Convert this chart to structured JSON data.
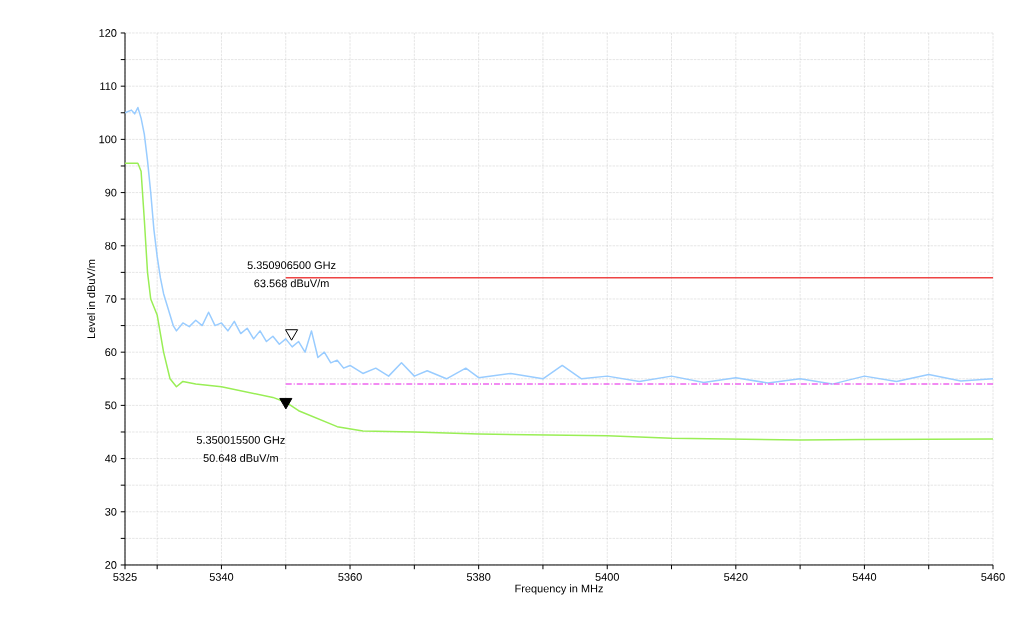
{
  "chart_data": {
    "type": "line",
    "xlabel": "Frequency in MHz",
    "ylabel": "Level in dBuV/m",
    "xlim": [
      5325,
      5460
    ],
    "ylim": [
      20,
      120
    ],
    "xticks": [
      5325,
      {
        "value": 5330,
        "label": null
      },
      5340,
      {
        "value": 5350,
        "label": null
      },
      5360,
      {
        "value": 5370,
        "label": null
      },
      5380,
      {
        "value": 5390,
        "label": null
      },
      5400,
      {
        "value": 5410,
        "label": null
      },
      5420,
      {
        "value": 5430,
        "label": null
      },
      5440,
      {
        "value": 5450,
        "label": null
      },
      5460
    ],
    "yticks": [
      20,
      {
        "value": 25,
        "label": null
      },
      30,
      {
        "value": 35,
        "label": null
      },
      40,
      {
        "value": 45,
        "label": null
      },
      50,
      {
        "value": 55,
        "label": null
      },
      60,
      {
        "value": 65,
        "label": null
      },
      70,
      {
        "value": 75,
        "label": null
      },
      80,
      {
        "value": 85,
        "label": null
      },
      90,
      {
        "value": 95,
        "label": null
      },
      100,
      {
        "value": 105,
        "label": null
      },
      110,
      {
        "value": 115,
        "label": null
      },
      120
    ],
    "grid": true,
    "marker": "none",
    "line_style": "solid",
    "series": [
      {
        "color": "#99ccff",
        "x": [
          5325,
          5326,
          5326.5,
          5327,
          5327.5,
          5328,
          5328.5,
          5329,
          5329.5,
          5330,
          5330.5,
          5331,
          5331.5,
          5332,
          5332.5,
          5333,
          5334,
          5335,
          5336,
          5337,
          5338,
          5339,
          5340,
          5341,
          5342,
          5343,
          5344,
          5345,
          5346,
          5347,
          5348,
          5349,
          5350,
          5351,
          5352,
          5353,
          5354,
          5355,
          5356,
          5357,
          5358,
          5359,
          5360,
          5362,
          5364,
          5366,
          5368,
          5370,
          5372,
          5375,
          5378,
          5380,
          5385,
          5390,
          5393,
          5396,
          5400,
          5405,
          5410,
          5415,
          5420,
          5425,
          5430,
          5435,
          5440,
          5445,
          5450,
          5455,
          5460
        ],
        "values": [
          105,
          105.5,
          104.8,
          106,
          104,
          101,
          96,
          90,
          83,
          78,
          74,
          71,
          69,
          67,
          65,
          64,
          65.5,
          64.8,
          66,
          65,
          67.5,
          65,
          65.5,
          64,
          65.8,
          63.5,
          64.5,
          62.5,
          64,
          62,
          63,
          61.5,
          62.5,
          61,
          62,
          60,
          64,
          59,
          60,
          58,
          58.5,
          57,
          57.5,
          56,
          57,
          55.5,
          58,
          55.5,
          56.5,
          55,
          57,
          55.2,
          56,
          55,
          57.5,
          55,
          55.5,
          54.5,
          55.5,
          54.3,
          55.2,
          54.2,
          55,
          54,
          55.5,
          54.5,
          55.8,
          54.6,
          55
        ]
      },
      {
        "color": "#99ee55",
        "x": [
          5325,
          5326,
          5327,
          5327.5,
          5328,
          5328.5,
          5329,
          5330,
          5331,
          5332,
          5333,
          5334,
          5336,
          5340,
          5344,
          5348,
          5350,
          5352,
          5355,
          5358,
          5362,
          5370,
          5380,
          5400,
          5410,
          5430,
          5440,
          5460
        ],
        "values": [
          95.5,
          95.5,
          95.5,
          94,
          85,
          75,
          70,
          67,
          60,
          55,
          53.5,
          54.5,
          54,
          53.5,
          52.5,
          51.5,
          50.6,
          49,
          47.5,
          46,
          45.2,
          45,
          44.6,
          44.3,
          43.8,
          43.5,
          43.6,
          43.7
        ]
      },
      {
        "color": "#ee4444",
        "x": [
          5350,
          5460
        ],
        "values": [
          74,
          74
        ]
      },
      {
        "color": "#ee66ee",
        "x": [
          5350,
          5460
        ],
        "values": [
          54,
          54
        ],
        "line_style": "dashed"
      },
      {
        "type": "scatter",
        "color": "#000000",
        "marker": "triangle",
        "x": [
          5350.9065
        ],
        "values": [
          63.568
        ]
      },
      {
        "type": "scatter",
        "color": "#000000",
        "marker": "triangle",
        "x": [
          5350.0155
        ],
        "values": [
          50.648
        ]
      }
    ],
    "annotations": [
      "5.350906500 GHz",
      "63.568 dBuV/m",
      "5.350015500 GHz",
      "50.648 dBuV/m"
    ]
  }
}
